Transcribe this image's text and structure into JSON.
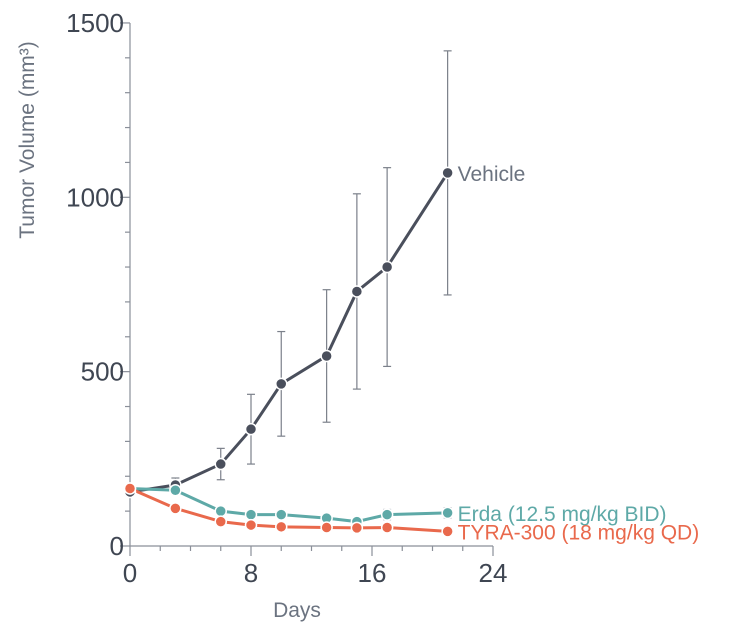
{
  "chart_data": {
    "type": "line",
    "xlabel": "Days",
    "ylabel": "Tumor Volume (mm³)",
    "xlim": [
      0,
      24
    ],
    "ylim": [
      0,
      1500
    ],
    "xticks": [
      0,
      8,
      16,
      24
    ],
    "yticks": [
      0,
      500,
      1000,
      1500
    ],
    "grid": false,
    "legend": "inline labels at line ends",
    "series": [
      {
        "name": "Vehicle",
        "color": "#4a4f5c",
        "label_color": "#6b7380",
        "x": [
          0,
          3,
          6,
          8,
          10,
          13,
          15,
          17,
          21
        ],
        "y": [
          155,
          175,
          235,
          335,
          465,
          545,
          730,
          800,
          1070
        ],
        "err": [
          10,
          20,
          45,
          100,
          150,
          190,
          280,
          285,
          350
        ]
      },
      {
        "name": "Erda (12.5 mg/kg BID)",
        "color": "#5ea9a7",
        "label_color": "#5ea9a7",
        "x": [
          0,
          3,
          6,
          8,
          10,
          13,
          15,
          17,
          21
        ],
        "y": [
          165,
          160,
          100,
          90,
          90,
          80,
          70,
          90,
          95
        ],
        "err": [
          8,
          12,
          10,
          10,
          10,
          12,
          12,
          15,
          15
        ]
      },
      {
        "name": "TYRA-300 (18 mg/kg QD)",
        "color": "#e9694c",
        "label_color": "#e9694c",
        "x": [
          0,
          3,
          6,
          8,
          10,
          13,
          15,
          17,
          21
        ],
        "y": [
          165,
          108,
          70,
          60,
          55,
          53,
          52,
          53,
          42
        ],
        "err": [
          6,
          6,
          5,
          5,
          5,
          5,
          5,
          5,
          5
        ]
      }
    ]
  }
}
